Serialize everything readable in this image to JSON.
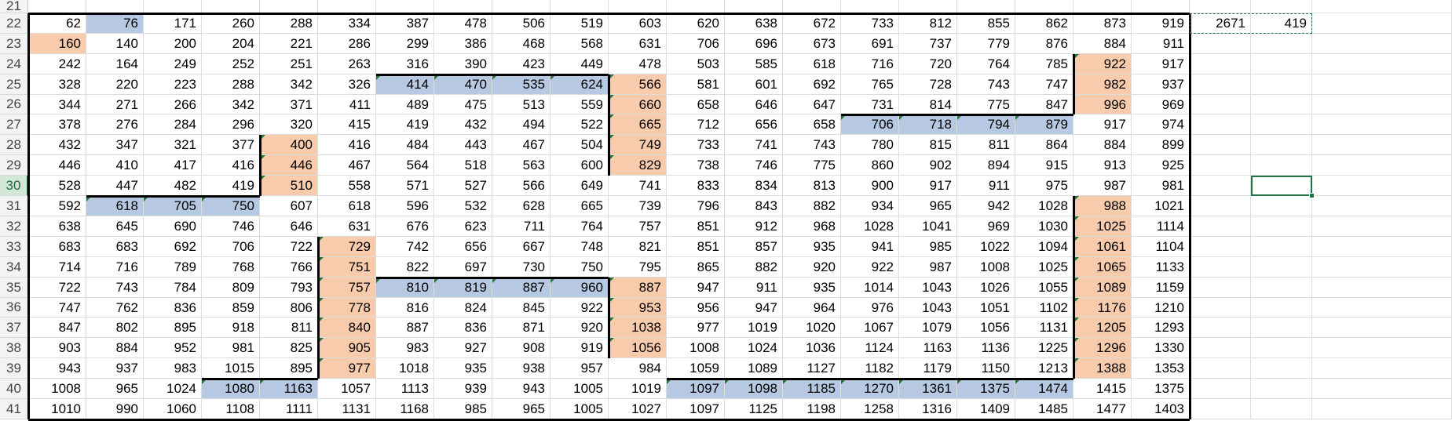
{
  "sheet": {
    "start_row": 21,
    "row_numbers": [
      "21",
      "22",
      "23",
      "24",
      "25",
      "26",
      "27",
      "28",
      "29",
      "30",
      "31",
      "32",
      "33",
      "34",
      "35",
      "36",
      "37",
      "38",
      "39",
      "40",
      "41"
    ],
    "selected_row": "30",
    "grid": [
      [
        62,
        76,
        171,
        260,
        288,
        334,
        387,
        478,
        506,
        519,
        603,
        620,
        638,
        672,
        733,
        812,
        855,
        862,
        873,
        919
      ],
      [
        160,
        140,
        200,
        204,
        221,
        286,
        299,
        386,
        468,
        568,
        631,
        706,
        696,
        673,
        691,
        737,
        779,
        876,
        884,
        911
      ],
      [
        242,
        164,
        249,
        252,
        251,
        263,
        316,
        390,
        423,
        449,
        478,
        503,
        585,
        618,
        716,
        720,
        764,
        785,
        922,
        917
      ],
      [
        328,
        220,
        223,
        288,
        342,
        326,
        414,
        470,
        535,
        624,
        566,
        581,
        601,
        692,
        765,
        728,
        743,
        747,
        982,
        937
      ],
      [
        344,
        271,
        266,
        342,
        371,
        411,
        489,
        475,
        513,
        559,
        660,
        658,
        646,
        647,
        731,
        814,
        775,
        847,
        996,
        969
      ],
      [
        378,
        276,
        284,
        296,
        320,
        415,
        419,
        432,
        494,
        522,
        665,
        712,
        656,
        658,
        706,
        718,
        794,
        879,
        917,
        974
      ],
      [
        432,
        347,
        321,
        377,
        400,
        416,
        484,
        443,
        467,
        504,
        749,
        733,
        741,
        743,
        780,
        815,
        811,
        864,
        884,
        899
      ],
      [
        446,
        410,
        417,
        416,
        446,
        467,
        564,
        518,
        563,
        600,
        829,
        738,
        746,
        775,
        860,
        902,
        894,
        915,
        913,
        925
      ],
      [
        528,
        447,
        482,
        419,
        510,
        558,
        571,
        527,
        566,
        649,
        741,
        833,
        834,
        813,
        900,
        917,
        911,
        975,
        987,
        981
      ],
      [
        592,
        618,
        705,
        750,
        607,
        618,
        596,
        532,
        628,
        665,
        739,
        796,
        843,
        882,
        934,
        965,
        942,
        1028,
        988,
        1021
      ],
      [
        638,
        645,
        690,
        746,
        646,
        631,
        676,
        623,
        711,
        764,
        757,
        851,
        912,
        968,
        1028,
        1041,
        969,
        1030,
        1025,
        1114
      ],
      [
        683,
        683,
        692,
        706,
        722,
        729,
        742,
        656,
        667,
        748,
        821,
        851,
        857,
        935,
        941,
        985,
        1022,
        1094,
        1061,
        1104
      ],
      [
        714,
        716,
        789,
        768,
        766,
        751,
        822,
        697,
        730,
        750,
        795,
        865,
        882,
        920,
        922,
        987,
        1008,
        1025,
        1065,
        1133
      ],
      [
        722,
        743,
        784,
        809,
        793,
        757,
        810,
        819,
        887,
        960,
        887,
        947,
        911,
        935,
        1014,
        1043,
        1026,
        1055,
        1089,
        1159
      ],
      [
        747,
        762,
        836,
        859,
        806,
        778,
        816,
        824,
        845,
        922,
        953,
        956,
        947,
        964,
        976,
        1043,
        1051,
        1102,
        1176,
        1210
      ],
      [
        847,
        802,
        895,
        918,
        811,
        840,
        887,
        836,
        871,
        920,
        1038,
        977,
        1019,
        1020,
        1067,
        1079,
        1056,
        1131,
        1205,
        1293
      ],
      [
        903,
        884,
        952,
        981,
        825,
        905,
        983,
        927,
        908,
        919,
        1056,
        1008,
        1024,
        1036,
        1124,
        1163,
        1136,
        1225,
        1296,
        1330
      ],
      [
        943,
        937,
        983,
        1015,
        895,
        977,
        1018,
        935,
        938,
        957,
        984,
        1059,
        1089,
        1127,
        1182,
        1179,
        1150,
        1213,
        1388,
        1353
      ],
      [
        1008,
        965,
        1024,
        1080,
        1163,
        1057,
        1113,
        939,
        943,
        1005,
        1019,
        1097,
        1098,
        1185,
        1270,
        1361,
        1375,
        1474,
        1415,
        1375
      ],
      [
        1010,
        990,
        1060,
        1108,
        1111,
        1131,
        1168,
        985,
        965,
        1005,
        1027,
        1097,
        1125,
        1198,
        1258,
        1316,
        1409,
        1485,
        1477,
        1403
      ]
    ],
    "side_values": [
      "2671",
      "419"
    ],
    "colors": {
      "blue_fill": "#b7c9e2",
      "peach_fill": "#f8cbad",
      "error_triangle": "#1e7a32",
      "selection_green": "#217346"
    }
  }
}
